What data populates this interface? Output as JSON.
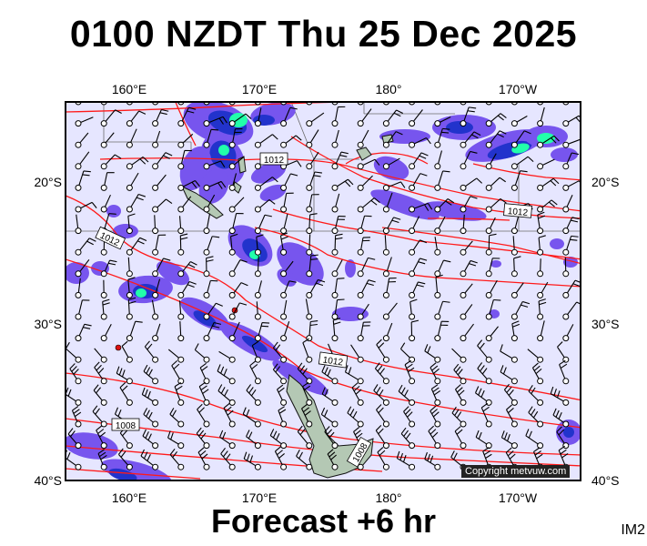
{
  "title": "0100 NZDT Thu 25 Dec 2025",
  "footer": "Forecast +6 hr",
  "image_code": "IM2",
  "copyright": "Copyright metvuw.com",
  "lon_labels": [
    "160°E",
    "170°E",
    "180°",
    "170°W"
  ],
  "lat_labels": [
    "20°S",
    "30°S",
    "40°S"
  ],
  "isobar_labels": [
    "1012",
    "1012",
    "1012",
    "1012",
    "1008",
    "1008"
  ],
  "colors": {
    "ocean": "#e6e6ff",
    "isobar": "#ff1a1a",
    "land": "#b4c8b4",
    "precip_light": "#ff22ff",
    "precip_mid": "#7755ee",
    "precip_heavy": "#2233cc",
    "precip_extreme": "#22ffaa"
  }
}
